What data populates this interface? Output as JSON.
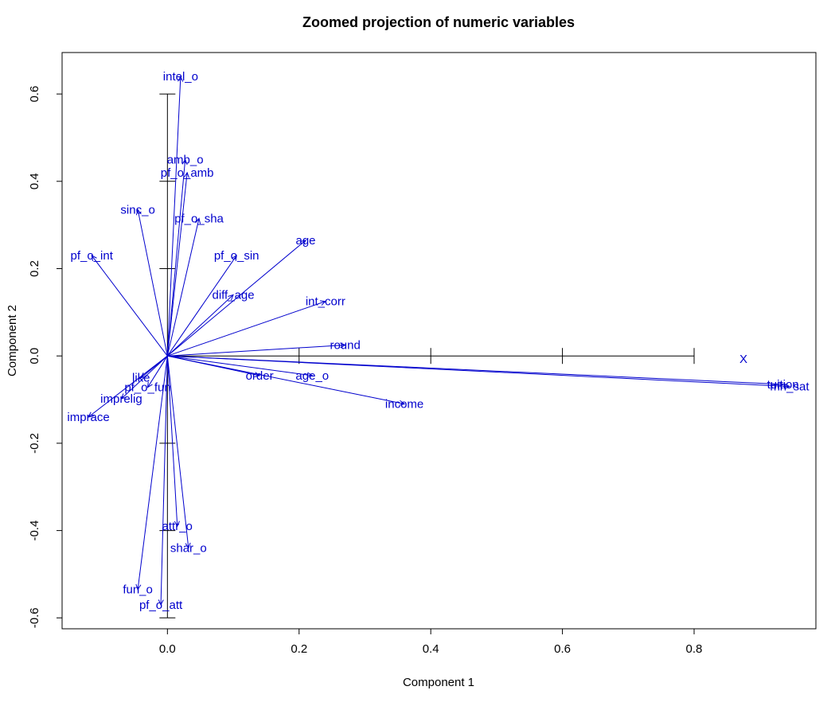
{
  "chart_data": {
    "type": "biplot",
    "title": "Zoomed projection of numeric variables",
    "xlabel": "Component 1",
    "ylabel": "Component 2",
    "xlim": [
      -0.16,
      0.985
    ],
    "ylim": [
      -0.625,
      0.695
    ],
    "x_ticks": [
      "0.0",
      "0.2",
      "0.4",
      "0.6",
      "0.8"
    ],
    "x_tick_values": [
      0.0,
      0.2,
      0.4,
      0.6,
      0.8
    ],
    "y_ticks": [
      "-0.6",
      "-0.4",
      "-0.2",
      "0.0",
      "0.2",
      "0.4",
      "0.6"
    ],
    "y_tick_values": [
      -0.6,
      -0.4,
      -0.2,
      0.0,
      0.2,
      0.4,
      0.6
    ],
    "color": "#0000cd",
    "supplementary_point": {
      "label": "X",
      "x": 0.875,
      "y": -0.005
    },
    "variables": [
      {
        "label": "intel_o",
        "x": 0.02,
        "y": 0.64
      },
      {
        "label": "amb_o",
        "x": 0.027,
        "y": 0.45
      },
      {
        "label": "pf_o_amb",
        "x": 0.03,
        "y": 0.42
      },
      {
        "label": "pf_o_sha",
        "x": 0.048,
        "y": 0.315
      },
      {
        "label": "sinc_o",
        "x": -0.045,
        "y": 0.335
      },
      {
        "label": "pf_o_int",
        "x": -0.115,
        "y": 0.23
      },
      {
        "label": "pf_o_sin",
        "x": 0.105,
        "y": 0.23
      },
      {
        "label": "age",
        "x": 0.21,
        "y": 0.265
      },
      {
        "label": "diff_age",
        "x": 0.1,
        "y": 0.14
      },
      {
        "label": "int_corr",
        "x": 0.24,
        "y": 0.125
      },
      {
        "label": "round",
        "x": 0.27,
        "y": 0.025
      },
      {
        "label": "order",
        "x": 0.14,
        "y": -0.045
      },
      {
        "label": "age_o",
        "x": 0.22,
        "y": -0.045
      },
      {
        "label": "income",
        "x": 0.36,
        "y": -0.11
      },
      {
        "label": "tuition",
        "x": 0.935,
        "y": -0.065
      },
      {
        "label": "mn_sat",
        "x": 0.945,
        "y": -0.07
      },
      {
        "label": "like",
        "x": -0.04,
        "y": -0.05
      },
      {
        "label": "pf_o_fun",
        "x": -0.03,
        "y": -0.072
      },
      {
        "label": "imprelig",
        "x": -0.07,
        "y": -0.098
      },
      {
        "label": "imprace",
        "x": -0.12,
        "y": -0.14
      },
      {
        "label": "attr_o",
        "x": 0.015,
        "y": -0.39
      },
      {
        "label": "shar_o",
        "x": 0.032,
        "y": -0.44
      },
      {
        "label": "fun_o",
        "x": -0.045,
        "y": -0.535
      },
      {
        "label": "pf_o_att",
        "x": -0.01,
        "y": -0.57
      }
    ]
  }
}
